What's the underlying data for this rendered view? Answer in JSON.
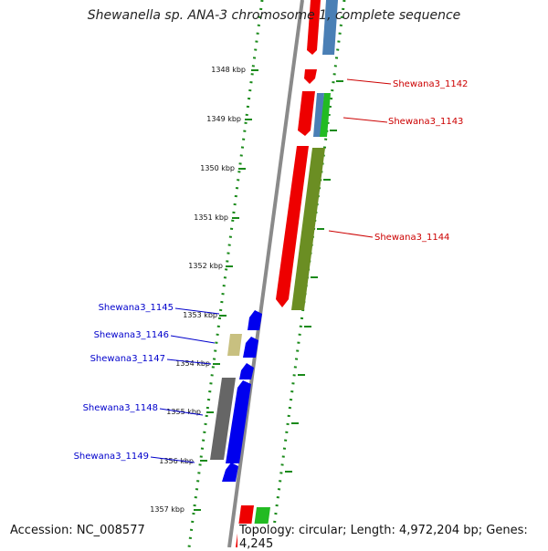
{
  "title": "Shewanella sp. ANA-3 chromosome 1, complete sequence",
  "accession_text": "Accession: NC_008577",
  "topology_text": "Topology: circular; Length: 4,972,204 bp; Genes: 4,245",
  "ruler": [
    {
      "label": "1348 kbp"
    },
    {
      "label": "1349 kbp"
    },
    {
      "label": "1350 kbp"
    },
    {
      "label": "1351 kbp"
    },
    {
      "label": "1352 kbp"
    },
    {
      "label": "1353 kbp"
    },
    {
      "label": "1354 kbp"
    },
    {
      "label": "1355 kbp"
    },
    {
      "label": "1356 kbp"
    },
    {
      "label": "1357 kbp"
    }
  ],
  "gene_labels_right": [
    {
      "label": "Shewana3_1142"
    },
    {
      "label": "Shewana3_1143"
    },
    {
      "label": "Shewana3_1144"
    }
  ],
  "gene_labels_left": [
    {
      "label": "Shewana3_1145"
    },
    {
      "label": "Shewana3_1146"
    },
    {
      "label": "Shewana3_1147"
    },
    {
      "label": "Shewana3_1148"
    },
    {
      "label": "Shewana3_1149"
    }
  ],
  "colors": {
    "backbone": "#8a8a8a",
    "red_gene": "#ee0000",
    "blue_gene": "#0000ee",
    "steel_gene": "#4a7fb5",
    "green_gene": "#22bb22",
    "olive_gene": "#6b8e23",
    "khaki_gene": "#c8c080",
    "gray_gene": "#666666",
    "right_label": "#cc0000",
    "left_label": "#0000cc",
    "dotted_track": "#1a8a1a"
  }
}
